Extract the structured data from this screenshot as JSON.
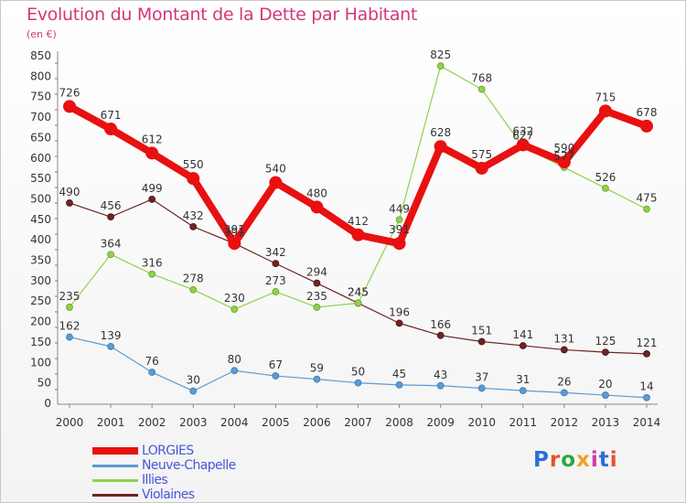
{
  "header": {
    "title": "Evolution du Montant de la Dette par Habitant",
    "subtitle": "(en €)"
  },
  "logo": {
    "text": "Proxiti"
  },
  "chart_data": {
    "type": "line",
    "title": "Evolution du Montant de la Dette par Habitant",
    "subtitle": "(en €)",
    "xlabel": "",
    "ylabel": "",
    "x": [
      2000,
      2001,
      2002,
      2003,
      2004,
      2005,
      2006,
      2007,
      2008,
      2009,
      2010,
      2011,
      2012,
      2013,
      2014
    ],
    "ylim": [
      0,
      850
    ],
    "yticks": [
      0,
      50,
      100,
      150,
      200,
      250,
      300,
      350,
      400,
      450,
      500,
      550,
      600,
      650,
      700,
      750,
      800,
      850
    ],
    "grid": false,
    "legend_position": "bottom-left",
    "series": [
      {
        "name": "Violaines",
        "color": "#6e2424",
        "values": [
          490,
          456,
          499,
          432,
          391,
          342,
          294,
          245,
          196,
          166,
          151,
          141,
          131,
          125,
          121
        ],
        "labels": [
          "490",
          "456",
          "499",
          "432",
          "391",
          "342",
          "294",
          "245",
          "196",
          "166",
          "151",
          "141",
          "131",
          "125",
          "121"
        ]
      },
      {
        "name": "Illies",
        "color": "#8fd24a",
        "values": [
          235,
          364,
          316,
          278,
          230,
          273,
          235,
          245,
          449,
          825,
          768,
          627,
          577,
          526,
          475
        ],
        "labels": [
          "235",
          "364",
          "316",
          "278",
          "230",
          "273",
          "235",
          "245",
          "449",
          "825",
          "768",
          "627",
          "577",
          "526",
          "475"
        ]
      },
      {
        "name": "Neuve-Chapelle",
        "color": "#5b9bd5",
        "values": [
          162,
          139,
          76,
          30,
          80,
          67,
          59,
          50,
          45,
          43,
          37,
          31,
          26,
          20,
          14
        ],
        "labels": [
          "162",
          "139",
          "76",
          "30",
          "80",
          "67",
          "59",
          "50",
          "45",
          "43",
          "37",
          "31",
          "26",
          "20",
          "14"
        ]
      },
      {
        "name": "LORGIES",
        "color": "#e81010",
        "values": [
          726,
          671,
          612,
          550,
          391,
          540,
          480,
          412,
          391,
          628,
          575,
          632,
          590,
          715,
          678
        ],
        "labels": [
          "726",
          "671",
          "612",
          "550",
          "391",
          "540",
          "480",
          "412",
          "391",
          "628",
          "575",
          "632",
          "590",
          "715",
          "678"
        ]
      }
    ],
    "legend": [
      "LORGIES",
      "Neuve-Chapelle",
      "Illies",
      "Violaines"
    ]
  }
}
